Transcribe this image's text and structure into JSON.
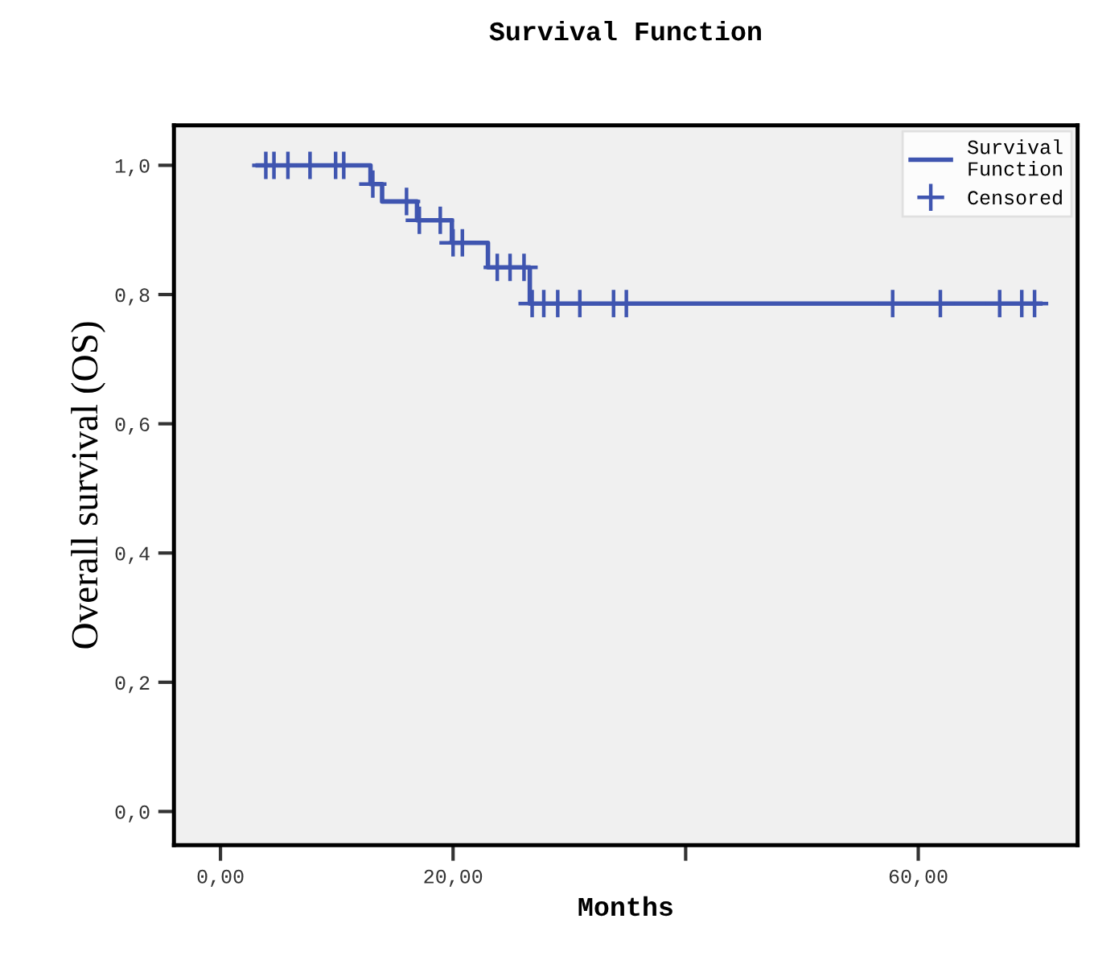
{
  "chart_data": {
    "type": "step",
    "title": "Survival Function",
    "xlabel": "Months",
    "ylabel": "Overall survival (OS)",
    "xlim": [
      -4.0,
      73.7
    ],
    "ylim": [
      -0.052,
      1.062
    ],
    "xticks": [
      {
        "value": 0,
        "label": "0,00"
      },
      {
        "value": 20,
        "label": "20,00"
      },
      {
        "value": 40,
        "label": null
      },
      {
        "value": 60,
        "label": "60,00"
      }
    ],
    "yticks": [
      {
        "value": 0,
        "label": "0,0"
      },
      {
        "value": 0.2,
        "label": "0,2"
      },
      {
        "value": 0.4,
        "label": "0,4"
      },
      {
        "value": 0.6,
        "label": "0,6"
      },
      {
        "value": 0.8,
        "label": "0,8"
      },
      {
        "value": 1.0,
        "label": "1,0"
      }
    ],
    "grid": false,
    "legend": "top right",
    "series": [
      {
        "name": "Survival\nFunction",
        "color": "#3f55b0",
        "line_style": "solid",
        "marker": "none",
        "x": [
          3.2,
          12.9,
          13.9,
          16.9,
          19.9,
          23.0,
          26.6,
          70.5
        ],
        "values": [
          1.0,
          0.971,
          0.944,
          0.915,
          0.88,
          0.842,
          0.786,
          0.786
        ]
      },
      {
        "name": "Censored",
        "type": "scatter",
        "color": "#3f55b0",
        "marker": "cross",
        "x": [
          3.9,
          4.6,
          5.8,
          7.7,
          9.9,
          10.6,
          13.1,
          16.0,
          17.1,
          18.9,
          20.0,
          20.8,
          23.8,
          24.9,
          26.1,
          26.8,
          27.8,
          29.0,
          30.9,
          33.8,
          34.9,
          57.8,
          61.9,
          67.0,
          68.9,
          70.0
        ],
        "values": [
          1.0,
          1.0,
          1.0,
          1.0,
          1.0,
          1.0,
          0.971,
          0.944,
          0.915,
          0.915,
          0.88,
          0.88,
          0.842,
          0.842,
          0.842,
          0.786,
          0.786,
          0.786,
          0.786,
          0.786,
          0.786,
          0.786,
          0.786,
          0.786,
          0.786,
          0.786
        ]
      }
    ]
  }
}
